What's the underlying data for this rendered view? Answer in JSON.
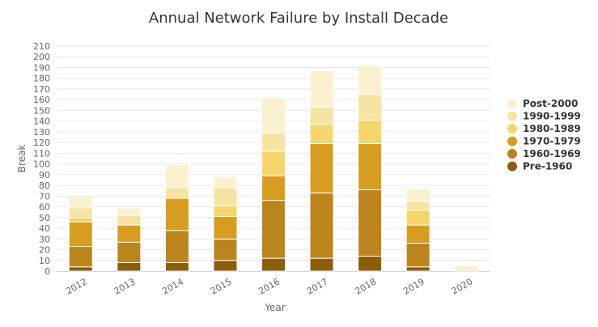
{
  "chart_data": {
    "type": "bar",
    "stacked": true,
    "title": "Annual Network Failure by Install Decade",
    "xlabel": "Year",
    "ylabel": "Break",
    "ylim": [
      0,
      210
    ],
    "ytick_step": 10,
    "grid": true,
    "legend_position": "right",
    "categories": [
      "2012",
      "2013",
      "2014",
      "2015",
      "2016",
      "2017",
      "2018",
      "2019",
      "2020"
    ],
    "series": [
      {
        "name": "Pre-1960",
        "color": "#8c5e0a",
        "values": [
          4,
          8,
          8,
          10,
          12,
          12,
          14,
          4,
          0
        ]
      },
      {
        "name": "1960-1969",
        "color": "#bc841c",
        "values": [
          19,
          19,
          30,
          20,
          54,
          61,
          62,
          22,
          0
        ]
      },
      {
        "name": "1970-1979",
        "color": "#d79d21",
        "values": [
          23,
          16,
          30,
          21,
          23,
          46,
          43,
          17,
          0
        ]
      },
      {
        "name": "1980-1989",
        "color": "#f5d66b",
        "values": [
          4,
          0,
          0,
          10,
          23,
          18,
          22,
          14,
          0
        ]
      },
      {
        "name": "1990-1999",
        "color": "#f6e4a2",
        "values": [
          9,
          9,
          10,
          17,
          17,
          16,
          24,
          8,
          0
        ]
      },
      {
        "name": "Post-2000",
        "color": "#fcf1cf",
        "values": [
          10,
          7,
          21,
          10,
          33,
          34,
          27,
          12,
          5
        ]
      }
    ]
  }
}
